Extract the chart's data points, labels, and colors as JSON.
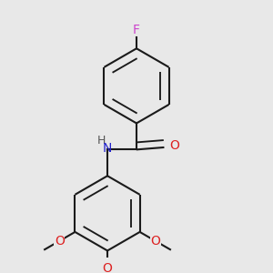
{
  "background_color": "#e8e8e8",
  "bond_color": "#1a1a1a",
  "line_width": 1.5,
  "dbo": 0.032,
  "atoms": {
    "F": {
      "color": "#cc44cc",
      "fontsize": 10
    },
    "O": {
      "color": "#dd2222",
      "fontsize": 10
    },
    "N": {
      "color": "#2222cc",
      "fontsize": 10
    },
    "H": {
      "color": "#555555",
      "fontsize": 9
    }
  },
  "fig_width": 3.0,
  "fig_height": 3.0,
  "dpi": 100,
  "xlim": [
    0.05,
    0.95
  ],
  "ylim": [
    0.05,
    0.98
  ]
}
